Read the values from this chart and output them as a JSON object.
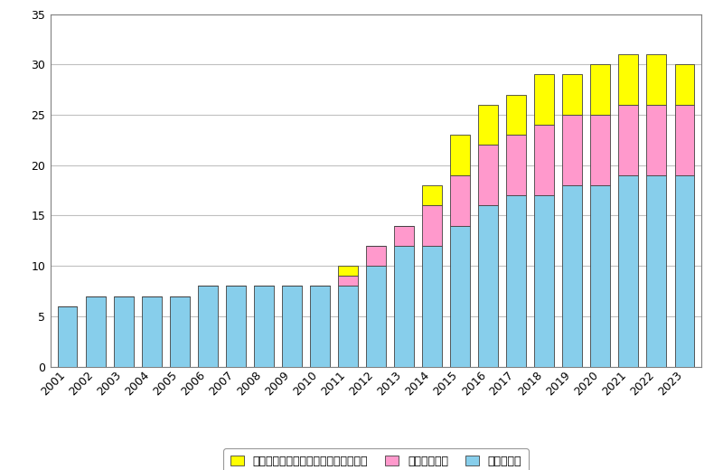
{
  "years": [
    2001,
    2002,
    2003,
    2004,
    2005,
    2006,
    2007,
    2008,
    2009,
    2010,
    2011,
    2012,
    2013,
    2014,
    2015,
    2016,
    2017,
    2018,
    2019,
    2020,
    2021,
    2022,
    2023
  ],
  "polymetallic_nodules": [
    6,
    7,
    7,
    7,
    7,
    8,
    8,
    8,
    8,
    8,
    8,
    10,
    12,
    12,
    14,
    16,
    17,
    17,
    18,
    18,
    19,
    19,
    19
  ],
  "seafloor_massive_sulfides": [
    0,
    0,
    0,
    0,
    0,
    0,
    0,
    0,
    0,
    0,
    1,
    2,
    2,
    4,
    5,
    6,
    6,
    7,
    7,
    7,
    7,
    7,
    7
  ],
  "cobalt_rich_crusts": [
    0,
    0,
    0,
    0,
    0,
    0,
    0,
    0,
    0,
    0,
    1,
    0,
    0,
    2,
    4,
    4,
    4,
    5,
    4,
    5,
    5,
    5,
    4
  ],
  "color_nodules": "#87CEEB",
  "color_sulfides": "#FF99CC",
  "color_crusts": "#FFFF00",
  "label_nodules": "多金属団塊",
  "label_sulfides": "多金属硫化物",
  "label_crusts": "コバルトリッチ鉄・マンガンクラスト",
  "ylim": [
    0,
    35
  ],
  "yticks": [
    0,
    5,
    10,
    15,
    20,
    25,
    30,
    35
  ],
  "grid_color": "#c0c0c0",
  "bar_edge_color": "#404040",
  "background_color": "#ffffff",
  "bar_width": 0.7,
  "tick_fontsize": 9,
  "legend_fontsize": 9
}
